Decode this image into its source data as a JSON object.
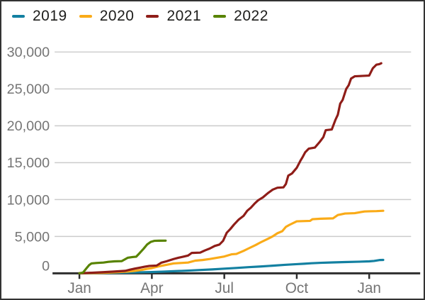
{
  "chart_data": {
    "type": "line",
    "title": "",
    "subtitle": "",
    "x_axis": {
      "tick_labels": [
        "Jan",
        "Apr",
        "Jul",
        "Oct",
        "Jan"
      ],
      "tick_months": [
        0,
        3,
        6,
        9,
        12
      ]
    },
    "y_axis": {
      "tick_labels": [
        "0",
        "5,000",
        "10,000",
        "15,000",
        "20,000",
        "25,000",
        "30,000"
      ],
      "tick_values": [
        0,
        5000,
        10000,
        15000,
        20000,
        25000,
        30000
      ]
    },
    "ylim": [
      0,
      30000
    ],
    "xlim_months": [
      -1.0,
      13.7
    ],
    "grid": "horizontal",
    "legend_position": "top-left",
    "colors": {
      "grid": "#cbcbcb",
      "axis": "#2e2e2e",
      "tick_label": "#757575",
      "legend_text": "#1d1d1b",
      "background": "#ffffff"
    },
    "series": [
      {
        "name": "2019",
        "color": "#1380A1",
        "points": [
          [
            0,
            0
          ],
          [
            0.5,
            20
          ],
          [
            1,
            45
          ],
          [
            1.5,
            75
          ],
          [
            2,
            105
          ],
          [
            2.5,
            135
          ],
          [
            3,
            175
          ],
          [
            3.5,
            225
          ],
          [
            4,
            295
          ],
          [
            4.5,
            365
          ],
          [
            5,
            445
          ],
          [
            5.5,
            525
          ],
          [
            6,
            625
          ],
          [
            6.5,
            725
          ],
          [
            7,
            825
          ],
          [
            7.5,
            925
          ],
          [
            8,
            1025
          ],
          [
            8.5,
            1140
          ],
          [
            9,
            1240
          ],
          [
            9.3,
            1300
          ],
          [
            9.6,
            1360
          ],
          [
            10,
            1420
          ],
          [
            10.5,
            1480
          ],
          [
            11,
            1520
          ],
          [
            11.5,
            1560
          ],
          [
            12,
            1620
          ],
          [
            12.2,
            1680
          ],
          [
            12.45,
            1800
          ],
          [
            12.58,
            1810
          ]
        ]
      },
      {
        "name": "2020",
        "color": "#FAAB18",
        "points": [
          [
            0,
            0
          ],
          [
            0.5,
            30
          ],
          [
            1,
            70
          ],
          [
            1.5,
            130
          ],
          [
            2,
            230
          ],
          [
            2.3,
            320
          ],
          [
            2.6,
            480
          ],
          [
            2.8,
            600
          ],
          [
            3,
            700
          ],
          [
            3.3,
            950
          ],
          [
            3.6,
            1140
          ],
          [
            3.9,
            1330
          ],
          [
            4.2,
            1400
          ],
          [
            4.5,
            1460
          ],
          [
            4.8,
            1710
          ],
          [
            5.1,
            1800
          ],
          [
            5.4,
            1930
          ],
          [
            5.7,
            2100
          ],
          [
            6,
            2280
          ],
          [
            6.3,
            2570
          ],
          [
            6.5,
            2620
          ],
          [
            6.8,
            3050
          ],
          [
            7,
            3360
          ],
          [
            7.3,
            3840
          ],
          [
            7.5,
            4190
          ],
          [
            7.8,
            4670
          ],
          [
            8,
            5000
          ],
          [
            8.2,
            5430
          ],
          [
            8.4,
            5700
          ],
          [
            8.55,
            6300
          ],
          [
            8.7,
            6570
          ],
          [
            9,
            7050
          ],
          [
            9.55,
            7100
          ],
          [
            9.65,
            7330
          ],
          [
            10,
            7400
          ],
          [
            10.5,
            7450
          ],
          [
            10.7,
            7900
          ],
          [
            11,
            8100
          ],
          [
            11.4,
            8150
          ],
          [
            11.8,
            8380
          ],
          [
            12,
            8400
          ],
          [
            12.3,
            8430
          ],
          [
            12.58,
            8480
          ]
        ]
      },
      {
        "name": "2021",
        "color": "#8f1d18",
        "points": [
          [
            0,
            0
          ],
          [
            0.5,
            80
          ],
          [
            1,
            150
          ],
          [
            1.5,
            250
          ],
          [
            1.9,
            330
          ],
          [
            2.1,
            500
          ],
          [
            2.3,
            640
          ],
          [
            2.5,
            760
          ],
          [
            2.7,
            900
          ],
          [
            2.9,
            1000
          ],
          [
            3.2,
            1050
          ],
          [
            3.4,
            1450
          ],
          [
            3.6,
            1620
          ],
          [
            3.9,
            1930
          ],
          [
            4.1,
            2100
          ],
          [
            4.3,
            2250
          ],
          [
            4.5,
            2410
          ],
          [
            4.65,
            2760
          ],
          [
            5,
            2800
          ],
          [
            5.2,
            3100
          ],
          [
            5.4,
            3360
          ],
          [
            5.6,
            3700
          ],
          [
            5.8,
            3900
          ],
          [
            5.95,
            4400
          ],
          [
            6.1,
            5500
          ],
          [
            6.25,
            6000
          ],
          [
            6.4,
            6600
          ],
          [
            6.6,
            7300
          ],
          [
            6.8,
            7800
          ],
          [
            6.95,
            8480
          ],
          [
            7.1,
            8900
          ],
          [
            7.25,
            9430
          ],
          [
            7.4,
            9900
          ],
          [
            7.6,
            10300
          ],
          [
            7.8,
            10860
          ],
          [
            8,
            11330
          ],
          [
            8.2,
            11600
          ],
          [
            8.45,
            11650
          ],
          [
            8.55,
            12100
          ],
          [
            8.65,
            13240
          ],
          [
            8.8,
            13520
          ],
          [
            9,
            14300
          ],
          [
            9.15,
            15240
          ],
          [
            9.25,
            15800
          ],
          [
            9.35,
            16400
          ],
          [
            9.5,
            16900
          ],
          [
            9.75,
            17050
          ],
          [
            9.95,
            17810
          ],
          [
            10.1,
            18450
          ],
          [
            10.2,
            19400
          ],
          [
            10.45,
            19500
          ],
          [
            10.6,
            20800
          ],
          [
            10.7,
            21500
          ],
          [
            10.8,
            23000
          ],
          [
            10.9,
            23500
          ],
          [
            11.05,
            25000
          ],
          [
            11.15,
            25500
          ],
          [
            11.25,
            26400
          ],
          [
            11.4,
            26700
          ],
          [
            11.7,
            26750
          ],
          [
            12,
            26800
          ],
          [
            12.15,
            27800
          ],
          [
            12.3,
            28290
          ],
          [
            12.42,
            28350
          ],
          [
            12.5,
            28480
          ]
        ]
      },
      {
        "name": "2022",
        "color": "#588300",
        "points": [
          [
            0,
            0
          ],
          [
            0.15,
            100
          ],
          [
            0.3,
            700
          ],
          [
            0.4,
            1100
          ],
          [
            0.5,
            1330
          ],
          [
            0.7,
            1400
          ],
          [
            1,
            1460
          ],
          [
            1.2,
            1550
          ],
          [
            1.45,
            1620
          ],
          [
            1.75,
            1650
          ],
          [
            2,
            2100
          ],
          [
            2.2,
            2200
          ],
          [
            2.35,
            2250
          ],
          [
            2.5,
            2760
          ],
          [
            2.65,
            3300
          ],
          [
            2.8,
            3900
          ],
          [
            2.95,
            4250
          ],
          [
            3.1,
            4400
          ],
          [
            3.3,
            4420
          ],
          [
            3.57,
            4430
          ]
        ]
      }
    ]
  }
}
